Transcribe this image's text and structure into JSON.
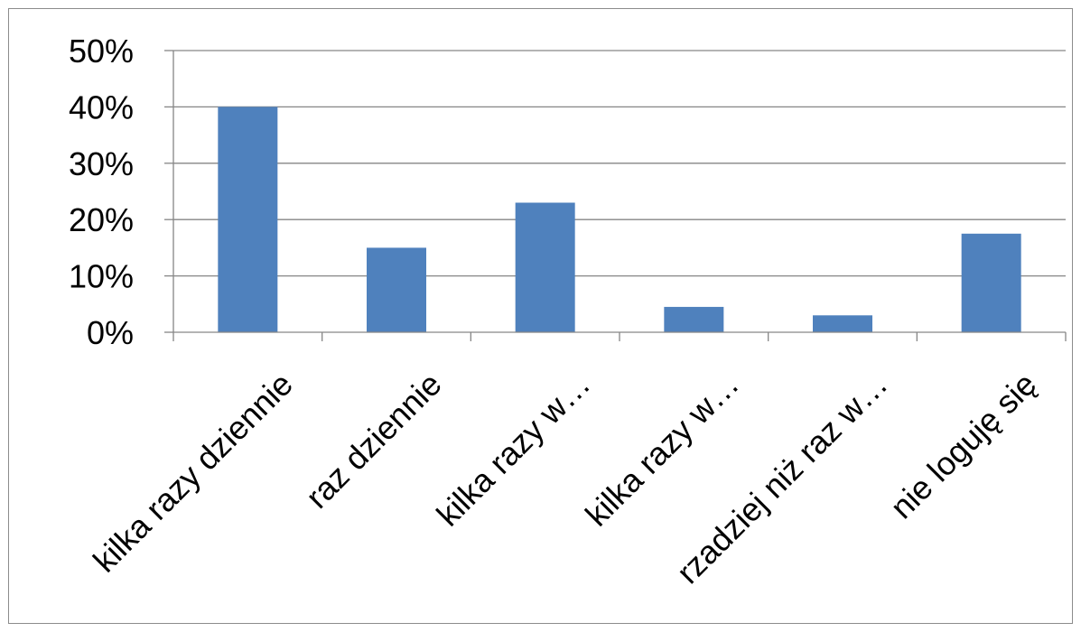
{
  "chart_data": {
    "type": "bar",
    "categories": [
      "kilka razy dziennie",
      "raz dziennie",
      "kilka razy w…",
      "kilka razy w…",
      "rzadziej niż raz w…",
      "nie loguję się"
    ],
    "values": [
      40,
      15,
      23,
      4.5,
      3,
      17.5
    ],
    "ylim": [
      0,
      50
    ],
    "yticks": [
      0,
      10,
      20,
      30,
      40,
      50
    ],
    "ytick_labels": [
      "0%",
      "10%",
      "20%",
      "30%",
      "40%",
      "50%"
    ],
    "value_unit": "%",
    "grid": true,
    "legend": "none",
    "bar_color": "#4f81bd"
  }
}
